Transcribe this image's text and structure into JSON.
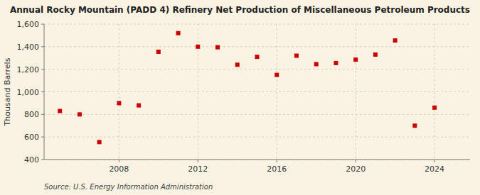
{
  "chart_data": {
    "type": "scatter",
    "title": "Annual Rocky Mountain (PADD 4) Refinery Net Production of Miscellaneous Petroleum Products",
    "ylabel": "Thousand Barrels",
    "source": "Source: U.S. Energy Information Administration",
    "x": [
      2005,
      2006,
      2007,
      2008,
      2009,
      2010,
      2011,
      2012,
      2013,
      2014,
      2015,
      2016,
      2017,
      2018,
      2019,
      2020,
      2021,
      2022,
      2023,
      2024
    ],
    "values": [
      830,
      800,
      555,
      900,
      880,
      1355,
      1520,
      1400,
      1395,
      1240,
      1310,
      1150,
      1320,
      1245,
      1255,
      1285,
      1330,
      1455,
      700,
      860
    ],
    "color": "#CC0000",
    "marker": "square",
    "xlim": [
      2004.2,
      2025.8
    ],
    "xticks": [
      2008,
      2012,
      2016,
      2020,
      2024
    ],
    "ylim": [
      400,
      1600
    ],
    "yticks": [
      400,
      600,
      800,
      {
        "value": 1000,
        "label": "1,000"
      },
      {
        "value": 1200,
        "label": "1,200"
      },
      {
        "value": 1400,
        "label": "1,400"
      },
      {
        "value": 1600,
        "label": "1,600"
      }
    ],
    "grid": true
  }
}
